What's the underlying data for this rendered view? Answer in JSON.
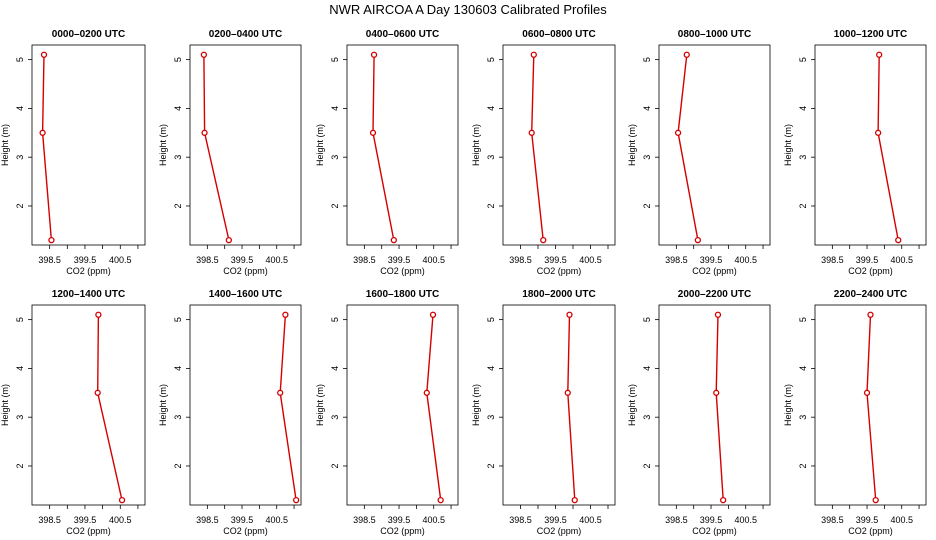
{
  "figure": {
    "title": "NWR AIRCOA A  Day 130603  Calibrated Profiles",
    "xlabel": "CO2 (ppm)",
    "ylabel": "Height (m)",
    "line_color": "#d40000",
    "marker_color": "#d40000"
  },
  "chart_data": [
    {
      "type": "line",
      "title": "0000–0200 UTC",
      "xlabel": "CO2 (ppm)",
      "ylabel": "Height (m)",
      "xlim": [
        398.0,
        401.2
      ],
      "ylim": [
        1.2,
        5.3
      ],
      "xticks": [
        "398.5",
        "399.5",
        "400.5"
      ],
      "yticks": [
        "2",
        "3",
        "4",
        "5"
      ],
      "x": [
        398.34,
        398.3,
        398.55
      ],
      "y": [
        5.1,
        3.5,
        1.3
      ]
    },
    {
      "type": "line",
      "title": "0200–0400 UTC",
      "xlabel": "CO2 (ppm)",
      "ylabel": "Height (m)",
      "xlim": [
        398.0,
        401.2
      ],
      "ylim": [
        1.2,
        5.3
      ],
      "xticks": [
        "398.5",
        "399.5",
        "400.5"
      ],
      "yticks": [
        "2",
        "3",
        "4",
        "5"
      ],
      "x": [
        398.4,
        398.42,
        399.12
      ],
      "y": [
        5.1,
        3.5,
        1.3
      ]
    },
    {
      "type": "line",
      "title": "0400–0600 UTC",
      "xlabel": "CO2 (ppm)",
      "ylabel": "Height (m)",
      "xlim": [
        398.0,
        401.2
      ],
      "ylim": [
        1.2,
        5.3
      ],
      "xticks": [
        "398.5",
        "399.5",
        "400.5"
      ],
      "yticks": [
        "2",
        "3",
        "4",
        "5"
      ],
      "x": [
        398.78,
        398.75,
        399.35
      ],
      "y": [
        5.1,
        3.5,
        1.3
      ]
    },
    {
      "type": "line",
      "title": "0600–0800 UTC",
      "xlabel": "CO2 (ppm)",
      "ylabel": "Height (m)",
      "xlim": [
        398.0,
        401.2
      ],
      "ylim": [
        1.2,
        5.3
      ],
      "xticks": [
        "398.5",
        "399.5",
        "400.5"
      ],
      "yticks": [
        "2",
        "3",
        "4",
        "5"
      ],
      "x": [
        398.88,
        398.82,
        399.15
      ],
      "y": [
        5.1,
        3.5,
        1.3
      ]
    },
    {
      "type": "line",
      "title": "0800–1000 UTC",
      "xlabel": "CO2 (ppm)",
      "ylabel": "Height (m)",
      "xlim": [
        398.0,
        401.2
      ],
      "ylim": [
        1.2,
        5.3
      ],
      "xticks": [
        "398.5",
        "399.5",
        "400.5"
      ],
      "yticks": [
        "2",
        "3",
        "4",
        "5"
      ],
      "x": [
        398.8,
        398.55,
        399.12
      ],
      "y": [
        5.1,
        3.5,
        1.3
      ]
    },
    {
      "type": "line",
      "title": "1000–1200 UTC",
      "xlabel": "CO2 (ppm)",
      "ylabel": "Height (m)",
      "xlim": [
        398.0,
        401.2
      ],
      "ylim": [
        1.2,
        5.3
      ],
      "xticks": [
        "398.5",
        "399.5",
        "400.5"
      ],
      "yticks": [
        "2",
        "3",
        "4",
        "5"
      ],
      "x": [
        399.85,
        399.82,
        400.4
      ],
      "y": [
        5.1,
        3.5,
        1.3
      ]
    },
    {
      "type": "line",
      "title": "1200–1400 UTC",
      "xlabel": "CO2 (ppm)",
      "ylabel": "Height (m)",
      "xlim": [
        398.0,
        401.2
      ],
      "ylim": [
        1.2,
        5.3
      ],
      "xticks": [
        "398.5",
        "399.5",
        "400.5"
      ],
      "yticks": [
        "2",
        "3",
        "4",
        "5"
      ],
      "x": [
        399.88,
        399.86,
        400.55
      ],
      "y": [
        5.1,
        3.5,
        1.3
      ]
    },
    {
      "type": "line",
      "title": "1400–1600 UTC",
      "xlabel": "CO2 (ppm)",
      "ylabel": "Height (m)",
      "xlim": [
        398.0,
        401.2
      ],
      "ylim": [
        1.2,
        5.3
      ],
      "xticks": [
        "398.5",
        "399.5",
        "400.5"
      ],
      "yticks": [
        "2",
        "3",
        "4",
        "5"
      ],
      "x": [
        400.75,
        400.6,
        401.06
      ],
      "y": [
        5.1,
        3.5,
        1.3
      ]
    },
    {
      "type": "line",
      "title": "1600–1800 UTC",
      "xlabel": "CO2 (ppm)",
      "ylabel": "Height (m)",
      "xlim": [
        398.0,
        401.2
      ],
      "ylim": [
        1.2,
        5.3
      ],
      "xticks": [
        "398.5",
        "399.5",
        "400.5"
      ],
      "yticks": [
        "2",
        "3",
        "4",
        "5"
      ],
      "x": [
        400.48,
        400.3,
        400.7
      ],
      "y": [
        5.1,
        3.5,
        1.3
      ]
    },
    {
      "type": "line",
      "title": "1800–2000 UTC",
      "xlabel": "CO2 (ppm)",
      "ylabel": "Height (m)",
      "xlim": [
        398.0,
        401.2
      ],
      "ylim": [
        1.2,
        5.3
      ],
      "xticks": [
        "398.5",
        "399.5",
        "400.5"
      ],
      "yticks": [
        "2",
        "3",
        "4",
        "5"
      ],
      "x": [
        399.9,
        399.85,
        400.05
      ],
      "y": [
        5.1,
        3.5,
        1.3
      ]
    },
    {
      "type": "line",
      "title": "2000–2200 UTC",
      "xlabel": "CO2 (ppm)",
      "ylabel": "Height (m)",
      "xlim": [
        398.0,
        401.2
      ],
      "ylim": [
        1.2,
        5.3
      ],
      "xticks": [
        "398.5",
        "399.5",
        "400.5"
      ],
      "yticks": [
        "2",
        "3",
        "4",
        "5"
      ],
      "x": [
        399.7,
        399.65,
        399.85
      ],
      "y": [
        5.1,
        3.5,
        1.3
      ]
    },
    {
      "type": "line",
      "title": "2200–2400 UTC",
      "xlabel": "CO2 (ppm)",
      "ylabel": "Height (m)",
      "xlim": [
        398.0,
        401.2
      ],
      "ylim": [
        1.2,
        5.3
      ],
      "xticks": [
        "398.5",
        "399.5",
        "400.5"
      ],
      "yticks": [
        "2",
        "3",
        "4",
        "5"
      ],
      "x": [
        399.6,
        399.5,
        399.75
      ],
      "y": [
        5.1,
        3.5,
        1.3
      ]
    }
  ]
}
